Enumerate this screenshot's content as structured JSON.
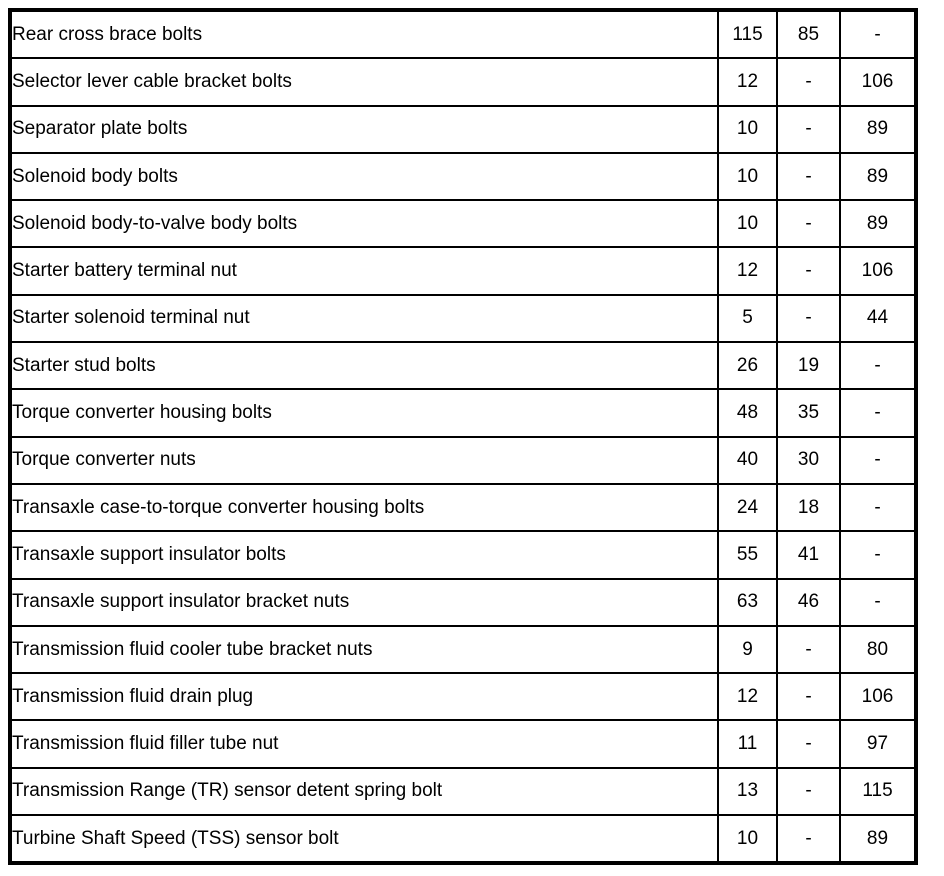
{
  "table": {
    "rows": [
      {
        "label": "Rear cross brace bolts",
        "values": [
          "115",
          "85",
          "-"
        ]
      },
      {
        "label": "Selector lever cable bracket bolts",
        "values": [
          "12",
          "-",
          "106"
        ]
      },
      {
        "label": "Separator plate bolts",
        "values": [
          "10",
          "-",
          "89"
        ]
      },
      {
        "label": "Solenoid body bolts",
        "values": [
          "10",
          "-",
          "89"
        ]
      },
      {
        "label": "Solenoid body-to-valve body bolts",
        "values": [
          "10",
          "-",
          "89"
        ]
      },
      {
        "label": "Starter battery terminal nut",
        "values": [
          "12",
          "-",
          "106"
        ]
      },
      {
        "label": "Starter solenoid terminal nut",
        "values": [
          "5",
          "-",
          "44"
        ]
      },
      {
        "label": "Starter stud bolts",
        "values": [
          "26",
          "19",
          "-"
        ]
      },
      {
        "label": "Torque converter housing bolts",
        "values": [
          "48",
          "35",
          "-"
        ]
      },
      {
        "label": "Torque converter nuts",
        "values": [
          "40",
          "30",
          "-"
        ]
      },
      {
        "label": "Transaxle case-to-torque converter housing bolts",
        "values": [
          "24",
          "18",
          "-"
        ]
      },
      {
        "label": "Transaxle support insulator bolts",
        "values": [
          "55",
          "41",
          "-"
        ]
      },
      {
        "label": "Transaxle support insulator bracket nuts",
        "values": [
          "63",
          "46",
          "-"
        ]
      },
      {
        "label": "Transmission fluid cooler tube bracket nuts",
        "values": [
          "9",
          "-",
          "80"
        ]
      },
      {
        "label": "Transmission fluid drain plug",
        "values": [
          "12",
          "-",
          "106"
        ]
      },
      {
        "label": "Transmission fluid filler tube nut",
        "values": [
          "11",
          "-",
          "97"
        ]
      },
      {
        "label": "Transmission Range (TR) sensor detent spring bolt",
        "values": [
          "13",
          "-",
          "115"
        ]
      },
      {
        "label": "Turbine Shaft Speed (TSS) sensor bolt",
        "values": [
          "10",
          "-",
          "89"
        ]
      }
    ],
    "colors": {
      "border": "#000000",
      "text": "#000000",
      "background": "#ffffff"
    }
  }
}
